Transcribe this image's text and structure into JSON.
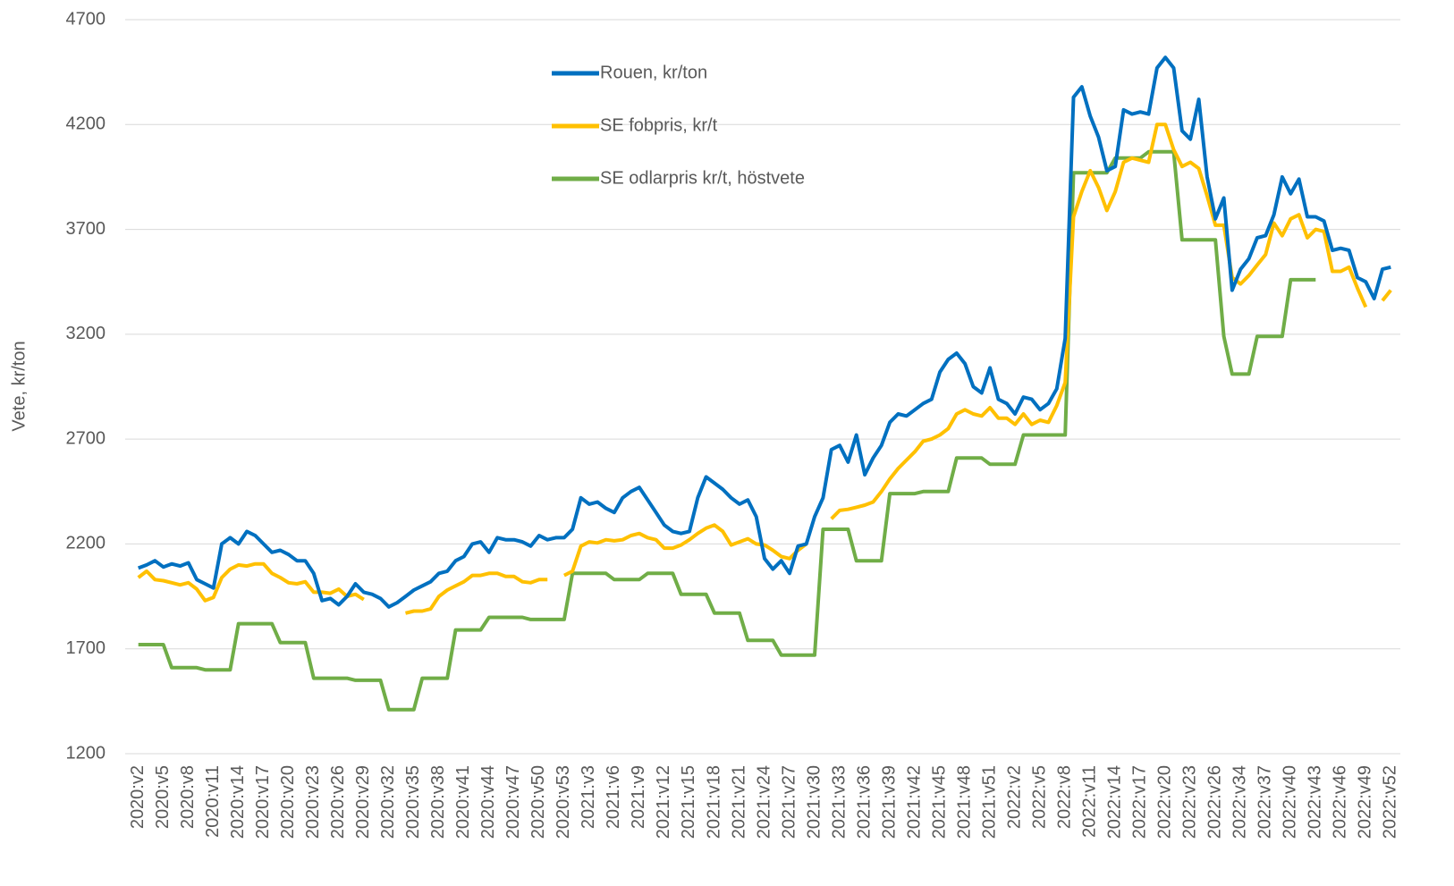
{
  "chart_data": {
    "type": "line",
    "y_label": "Vete, kr/ton",
    "ylim": [
      1200,
      4700
    ],
    "yticks": [
      1200,
      1700,
      2200,
      2700,
      3200,
      3700,
      4200,
      4700
    ],
    "grid": true,
    "categories": [
      "2020:v2",
      null,
      null,
      "2020:v5",
      null,
      null,
      "2020:v8",
      null,
      null,
      "2020:v11",
      null,
      null,
      "2020:v14",
      null,
      null,
      "2020:v17",
      null,
      null,
      "2020:v20",
      null,
      null,
      "2020:v23",
      null,
      null,
      "2020:v26",
      null,
      null,
      "2020:v29",
      null,
      null,
      "2020:v32",
      null,
      null,
      "2020:v35",
      null,
      null,
      "2020:v38",
      null,
      null,
      "2020:v41",
      null,
      null,
      "2020:v44",
      null,
      null,
      "2020:v47",
      null,
      null,
      "2020:v50",
      null,
      null,
      "2020:v53",
      null,
      null,
      "2021:v3",
      null,
      null,
      "2021:v6",
      null,
      null,
      "2021:v9",
      null,
      null,
      "2021:v12",
      null,
      null,
      "2021:v15",
      null,
      null,
      "2021:v18",
      null,
      null,
      "2021:v21",
      null,
      null,
      "2021:v24",
      null,
      null,
      "2021:v27",
      null,
      null,
      "2021:v30",
      null,
      null,
      "2021:v33",
      null,
      null,
      "2021:v36",
      null,
      null,
      "2021:v39",
      null,
      null,
      "2021:v42",
      null,
      null,
      "2021:v45",
      null,
      null,
      "2021:v48",
      null,
      null,
      "2021:v51",
      null,
      null,
      "2022:v2",
      null,
      null,
      "2022:v5",
      null,
      null,
      "2022:v8",
      null,
      null,
      "2022:v11",
      null,
      null,
      "2022:v14",
      null,
      null,
      "2022:v17",
      null,
      null,
      "2022:v20",
      null,
      null,
      "2022:v23",
      null,
      null,
      "2022:v26",
      null,
      null,
      "2022:v34",
      null,
      null,
      "2022:v37",
      null,
      null,
      "2022:v40",
      null,
      null,
      "2022:v43",
      null,
      null,
      "2022:v46",
      null,
      null,
      "2022:v49",
      null,
      null,
      "2022:v52"
    ],
    "series": [
      {
        "name": "Rouen, kr/ton",
        "color": "#0070c0",
        "values": [
          2085,
          2100,
          2120,
          2090,
          2105,
          2095,
          2110,
          2030,
          2010,
          1990,
          2200,
          2230,
          2200,
          2260,
          2240,
          2200,
          2160,
          2170,
          2150,
          2120,
          2120,
          2060,
          1930,
          1940,
          1910,
          1950,
          2010,
          1970,
          1960,
          1940,
          1900,
          1920,
          1950,
          1980,
          2000,
          2020,
          2060,
          2070,
          2120,
          2140,
          2200,
          2210,
          2160,
          2230,
          2220,
          2220,
          2210,
          2190,
          2240,
          2220,
          2230,
          2230,
          2270,
          2420,
          2390,
          2400,
          2370,
          2350,
          2420,
          2450,
          2470,
          2410,
          2350,
          2290,
          2260,
          2250,
          2260,
          2420,
          2520,
          2490,
          2460,
          2420,
          2390,
          2410,
          2330,
          2130,
          2080,
          2120,
          2060,
          2190,
          2200,
          2330,
          2420,
          2650,
          2670,
          2590,
          2720,
          2530,
          2610,
          2670,
          2780,
          2820,
          2810,
          2840,
          2870,
          2890,
          3020,
          3080,
          3110,
          3060,
          2950,
          2920,
          3040,
          2890,
          2870,
          2820,
          2900,
          2890,
          2840,
          2870,
          2940,
          3180,
          4330,
          4380,
          4240,
          4140,
          3980,
          4000,
          4270,
          4250,
          4260,
          4250,
          4470,
          4520,
          4470,
          4170,
          4130,
          4320,
          3950,
          3750,
          3850,
          3410,
          3510,
          3560,
          3660,
          3670,
          3770,
          3950,
          3870,
          3940,
          3760,
          3760,
          3740,
          3600,
          3610,
          3600,
          3470,
          3450,
          3370,
          3510,
          3520
        ]
      },
      {
        "name": "SE fobpris, kr/t",
        "color": "#ffc000",
        "values": [
          2040,
          2070,
          2030,
          2025,
          2015,
          2005,
          2015,
          1985,
          1930,
          1945,
          2040,
          2080,
          2100,
          2095,
          2105,
          2105,
          2060,
          2040,
          2015,
          2010,
          2020,
          1970,
          1970,
          1965,
          1985,
          1950,
          1960,
          1935,
          null,
          null,
          null,
          null,
          1870,
          1880,
          1880,
          1890,
          1950,
          1980,
          2000,
          2020,
          2050,
          2050,
          2060,
          2060,
          2045,
          2045,
          2020,
          2015,
          2030,
          2030,
          null,
          2050,
          2070,
          2190,
          2210,
          2205,
          2220,
          2215,
          2220,
          2240,
          2250,
          2230,
          2220,
          2180,
          2180,
          2195,
          2220,
          2250,
          2275,
          2290,
          2260,
          2195,
          2210,
          2225,
          2200,
          2195,
          2170,
          2140,
          2130,
          2170,
          2200,
          null,
          null,
          2320,
          2360,
          2365,
          2375,
          2385,
          2400,
          2450,
          2510,
          2560,
          2600,
          2640,
          2690,
          2700,
          2720,
          2750,
          2820,
          2840,
          2820,
          2810,
          2850,
          2800,
          2800,
          2770,
          2820,
          2770,
          2790,
          2780,
          2860,
          2970,
          3760,
          3880,
          3980,
          3900,
          3790,
          3880,
          4020,
          4040,
          4030,
          4020,
          4200,
          4200,
          4080,
          4000,
          4020,
          3990,
          3860,
          3720,
          3720,
          3470,
          3440,
          3480,
          3530,
          3580,
          3730,
          3670,
          3750,
          3770,
          3660,
          3700,
          3690,
          3500,
          3500,
          3520,
          3420,
          3330,
          null,
          3360,
          3410
        ]
      },
      {
        "name": "SE odlarpris kr/t, höstvete",
        "color": "#70ad47",
        "values": [
          1720,
          1720,
          1720,
          1720,
          1610,
          1610,
          1610,
          1610,
          1600,
          1600,
          1600,
          1600,
          1820,
          1820,
          1820,
          1820,
          1820,
          1730,
          1730,
          1730,
          1730,
          1560,
          1560,
          1560,
          1560,
          1560,
          1550,
          1550,
          1550,
          1550,
          1410,
          1410,
          1410,
          1410,
          1560,
          1560,
          1560,
          1560,
          1790,
          1790,
          1790,
          1790,
          1850,
          1850,
          1850,
          1850,
          1850,
          1840,
          1840,
          1840,
          1840,
          1840,
          2060,
          2060,
          2060,
          2060,
          2060,
          2030,
          2030,
          2030,
          2030,
          2060,
          2060,
          2060,
          2060,
          1960,
          1960,
          1960,
          1960,
          1870,
          1870,
          1870,
          1870,
          1740,
          1740,
          1740,
          1740,
          1670,
          1670,
          1670,
          1670,
          1670,
          2270,
          2270,
          2270,
          2270,
          2120,
          2120,
          2120,
          2120,
          2440,
          2440,
          2440,
          2440,
          2450,
          2450,
          2450,
          2450,
          2610,
          2610,
          2610,
          2610,
          2580,
          2580,
          2580,
          2580,
          2720,
          2720,
          2720,
          2720,
          2720,
          2720,
          3970,
          3970,
          3970,
          3970,
          3970,
          4040,
          4040,
          4040,
          4040,
          4070,
          4070,
          4070,
          4070,
          3650,
          3650,
          3650,
          3650,
          3650,
          3190,
          3010,
          3010,
          3010,
          3190,
          3190,
          3190,
          3190,
          3460,
          3460,
          3460,
          3460,
          null,
          null,
          null,
          null,
          null,
          null,
          null,
          null,
          null
        ]
      }
    ]
  }
}
